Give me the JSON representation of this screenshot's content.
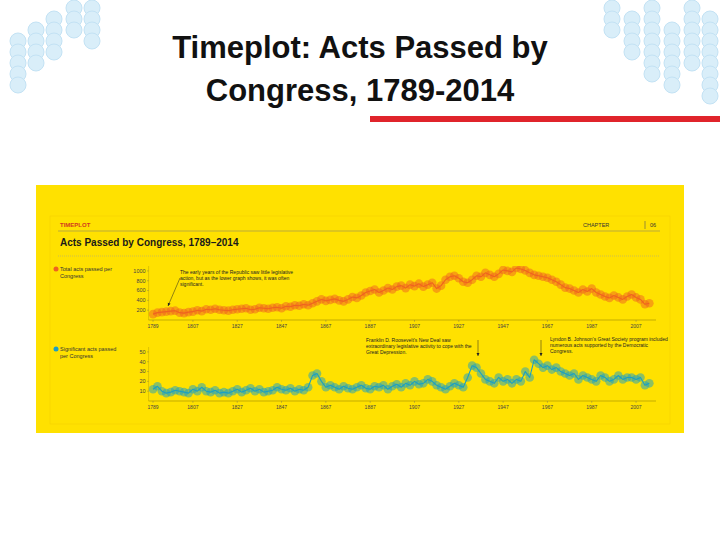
{
  "slide_title": "Timeplot: Acts Passed by Congress, 1789-2014",
  "panel": {
    "label": "TIMEPLOT",
    "chapter_label": "CHAPTER",
    "chapter": "06",
    "title": "Acts Passed by Congress, 1789–2014"
  },
  "chart_data": [
    {
      "type": "line",
      "x": [
        1789,
        1791,
        1793,
        1795,
        1797,
        1799,
        1801,
        1803,
        1805,
        1807,
        1809,
        1811,
        1813,
        1815,
        1817,
        1819,
        1821,
        1823,
        1825,
        1827,
        1829,
        1831,
        1833,
        1835,
        1837,
        1839,
        1841,
        1843,
        1845,
        1847,
        1849,
        1851,
        1853,
        1855,
        1857,
        1859,
        1861,
        1863,
        1865,
        1867,
        1869,
        1871,
        1873,
        1875,
        1877,
        1879,
        1881,
        1883,
        1885,
        1887,
        1889,
        1891,
        1893,
        1895,
        1897,
        1899,
        1901,
        1903,
        1905,
        1907,
        1909,
        1911,
        1913,
        1915,
        1917,
        1919,
        1921,
        1923,
        1925,
        1927,
        1929,
        1931,
        1933,
        1935,
        1937,
        1939,
        1941,
        1943,
        1945,
        1947,
        1949,
        1951,
        1953,
        1955,
        1957,
        1959,
        1961,
        1963,
        1965,
        1967,
        1969,
        1971,
        1973,
        1975,
        1977,
        1979,
        1981,
        1983,
        1985,
        1987,
        1989,
        1991,
        1993,
        1995,
        1997,
        1999,
        2001,
        2003,
        2005,
        2007,
        2009,
        2011,
        2013
      ],
      "series": [
        {
          "name": "Total acts passed per Congress",
          "color": "#ef6220",
          "marker": "circle",
          "values": [
            120,
            150,
            160,
            170,
            180,
            190,
            150,
            140,
            160,
            170,
            200,
            180,
            220,
            210,
            230,
            210,
            200,
            190,
            210,
            220,
            230,
            240,
            210,
            220,
            250,
            240,
            230,
            250,
            260,
            240,
            280,
            270,
            300,
            290,
            320,
            300,
            340,
            380,
            420,
            390,
            410,
            430,
            400,
            380,
            420,
            470,
            450,
            500,
            560,
            590,
            620,
            560,
            600,
            650,
            620,
            680,
            700,
            650,
            720,
            690,
            740,
            680,
            720,
            760,
            640,
            700,
            820,
            880,
            900,
            850,
            780,
            760,
            820,
            900,
            880,
            960,
            920,
            880,
            940,
            1020,
            1000,
            980,
            1060,
            1040,
            1010,
            960,
            920,
            900,
            880,
            860,
            820,
            780,
            720,
            660,
            640,
            600,
            560,
            620,
            580,
            640,
            560,
            520,
            480,
            450,
            500,
            460,
            420,
            480,
            520,
            460,
            420,
            320,
            340
          ]
        }
      ],
      "xlim": [
        1787,
        2016
      ],
      "xticks": [
        1789,
        1807,
        1827,
        1847,
        1867,
        1887,
        1907,
        1927,
        1947,
        1967,
        1987,
        2007
      ],
      "ylim": [
        0,
        1100
      ],
      "yticks": [
        200,
        400,
        600,
        800,
        1000
      ],
      "grid": false,
      "annotations": [
        "The early years of the Republic saw little legislative action, but as the lower graph shows, it was often significant."
      ]
    },
    {
      "type": "line",
      "x": [
        1789,
        1791,
        1793,
        1795,
        1797,
        1799,
        1801,
        1803,
        1805,
        1807,
        1809,
        1811,
        1813,
        1815,
        1817,
        1819,
        1821,
        1823,
        1825,
        1827,
        1829,
        1831,
        1833,
        1835,
        1837,
        1839,
        1841,
        1843,
        1845,
        1847,
        1849,
        1851,
        1853,
        1855,
        1857,
        1859,
        1861,
        1863,
        1865,
        1867,
        1869,
        1871,
        1873,
        1875,
        1877,
        1879,
        1881,
        1883,
        1885,
        1887,
        1889,
        1891,
        1893,
        1895,
        1897,
        1899,
        1901,
        1903,
        1905,
        1907,
        1909,
        1911,
        1913,
        1915,
        1917,
        1919,
        1921,
        1923,
        1925,
        1927,
        1929,
        1931,
        1933,
        1935,
        1937,
        1939,
        1941,
        1943,
        1945,
        1947,
        1949,
        1951,
        1953,
        1955,
        1957,
        1959,
        1961,
        1963,
        1965,
        1967,
        1969,
        1971,
        1973,
        1975,
        1977,
        1979,
        1981,
        1983,
        1985,
        1987,
        1989,
        1991,
        1993,
        1995,
        1997,
        1999,
        2001,
        2003,
        2005,
        2007,
        2009,
        2011,
        2013
      ],
      "series": [
        {
          "name": "Significant acts passed per Congress",
          "color": "#1a9fc4",
          "marker": "circle",
          "values": [
            12,
            15,
            10,
            8,
            9,
            11,
            10,
            9,
            8,
            12,
            10,
            14,
            10,
            9,
            11,
            8,
            9,
            8,
            10,
            12,
            9,
            11,
            13,
            10,
            12,
            9,
            10,
            11,
            14,
            12,
            11,
            13,
            10,
            12,
            11,
            14,
            26,
            28,
            20,
            14,
            16,
            14,
            12,
            15,
            13,
            12,
            14,
            16,
            13,
            12,
            15,
            14,
            16,
            12,
            15,
            17,
            14,
            18,
            16,
            20,
            17,
            18,
            22,
            20,
            16,
            14,
            12,
            15,
            18,
            16,
            14,
            24,
            36,
            34,
            28,
            22,
            20,
            18,
            24,
            20,
            22,
            18,
            22,
            20,
            30,
            24,
            42,
            38,
            34,
            36,
            32,
            34,
            30,
            28,
            26,
            28,
            22,
            26,
            24,
            22,
            20,
            26,
            24,
            20,
            22,
            26,
            22,
            24,
            24,
            22,
            24,
            16,
            18
          ]
        }
      ],
      "xlim": [
        1787,
        2016
      ],
      "xticks": [
        1789,
        1807,
        1827,
        1847,
        1867,
        1887,
        1907,
        1927,
        1947,
        1967,
        1987,
        2007
      ],
      "ylim": [
        0,
        55
      ],
      "yticks": [
        10,
        20,
        30,
        40,
        50
      ],
      "grid": false,
      "annotations": [
        "Franklin D. Roosevelt’s New Deal saw extraordinary legislative activity to cope with the Great Depression.",
        "Lyndon B. Johnson’s Great Society program included numerous acts supported by the Democratic Congress."
      ]
    }
  ]
}
